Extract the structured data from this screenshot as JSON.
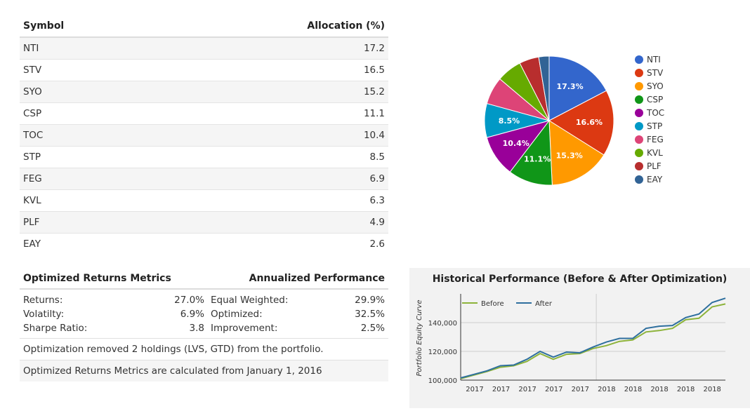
{
  "allocation_table": {
    "header_symbol": "Symbol",
    "header_allocation": "Allocation (%)",
    "rows": [
      {
        "symbol": "NTI",
        "value": "17.2"
      },
      {
        "symbol": "STV",
        "value": "16.5"
      },
      {
        "symbol": "SYO",
        "value": "15.2"
      },
      {
        "symbol": "CSP",
        "value": "11.1"
      },
      {
        "symbol": "TOC",
        "value": "10.4"
      },
      {
        "symbol": "STP",
        "value": "8.5"
      },
      {
        "symbol": "FEG",
        "value": "6.9"
      },
      {
        "symbol": "KVL",
        "value": "6.3"
      },
      {
        "symbol": "PLF",
        "value": "4.9"
      },
      {
        "symbol": "EAY",
        "value": "2.6"
      }
    ]
  },
  "metrics": {
    "header_left": "Optimized Returns Metrics",
    "header_right": "Annualized Performance",
    "rows": [
      {
        "label": "Returns:",
        "value": "27.0%",
        "label2": "Equal Weighted:",
        "value2": "29.9%"
      },
      {
        "label": "Volatilty:",
        "value": "6.9%",
        "label2": "Optimized:",
        "value2": "32.5%"
      },
      {
        "label": "Sharpe Ratio:",
        "value": "3.8",
        "label2": "Improvement:",
        "value2": "2.5%"
      }
    ],
    "note1": "Optimization removed 2 holdings (LVS, GTD) from the portfolio.",
    "note2": "Optimized Returns Metrics are calculated from January 1, 2016"
  },
  "chart_data": [
    {
      "type": "pie",
      "labels": [
        "NTI",
        "STV",
        "SYO",
        "CSP",
        "TOC",
        "STP",
        "FEG",
        "KVL",
        "PLF",
        "EAY"
      ],
      "values": [
        17.3,
        16.6,
        15.3,
        11.1,
        10.4,
        8.5,
        6.9,
        6.3,
        4.9,
        2.6
      ],
      "data_labels": [
        "17.3%",
        "16.6%",
        "15.3%",
        "11.1%",
        "10.4%",
        "8.5%",
        "",
        "",
        "",
        ""
      ],
      "colors": [
        "#3366cc",
        "#dc3912",
        "#ff9900",
        "#109618",
        "#990099",
        "#0099c6",
        "#dd4477",
        "#66aa00",
        "#b82e2e",
        "#316395"
      ],
      "legend_position": "right"
    },
    {
      "type": "line",
      "title": "Historical Performance (Before & After Optimization)",
      "ylabel": "Portfolio Equity Curve",
      "xlabel": "",
      "x_tick_labels": [
        "2017",
        "2017",
        "2017",
        "2017",
        "2017",
        "2018",
        "2018",
        "2018",
        "2018",
        "2018"
      ],
      "y_ticks": [
        100000,
        120000,
        140000
      ],
      "y_tick_labels": [
        "100,000",
        "120,000",
        "140,000"
      ],
      "ylim": [
        100000,
        160000
      ],
      "grid": true,
      "legend_position": "top-left",
      "x": [
        0,
        1,
        2,
        3,
        4,
        5,
        6,
        7,
        8,
        9,
        10,
        11,
        12,
        13,
        14,
        15,
        16,
        17,
        18,
        19,
        20
      ],
      "series": [
        {
          "name": "Before",
          "color": "#8db33a",
          "values": [
            101000,
            103500,
            106000,
            109000,
            110000,
            113000,
            118500,
            114500,
            118000,
            118500,
            122000,
            124000,
            127000,
            128000,
            133500,
            134500,
            136000,
            142000,
            143000,
            151000,
            153000
          ]
        },
        {
          "name": "After",
          "color": "#2e6f9e",
          "values": [
            101500,
            104000,
            106500,
            110000,
            110500,
            114500,
            120000,
            116000,
            119500,
            119000,
            123000,
            126500,
            129000,
            129000,
            136000,
            137500,
            138000,
            143500,
            146000,
            154000,
            157000
          ]
        }
      ]
    }
  ]
}
